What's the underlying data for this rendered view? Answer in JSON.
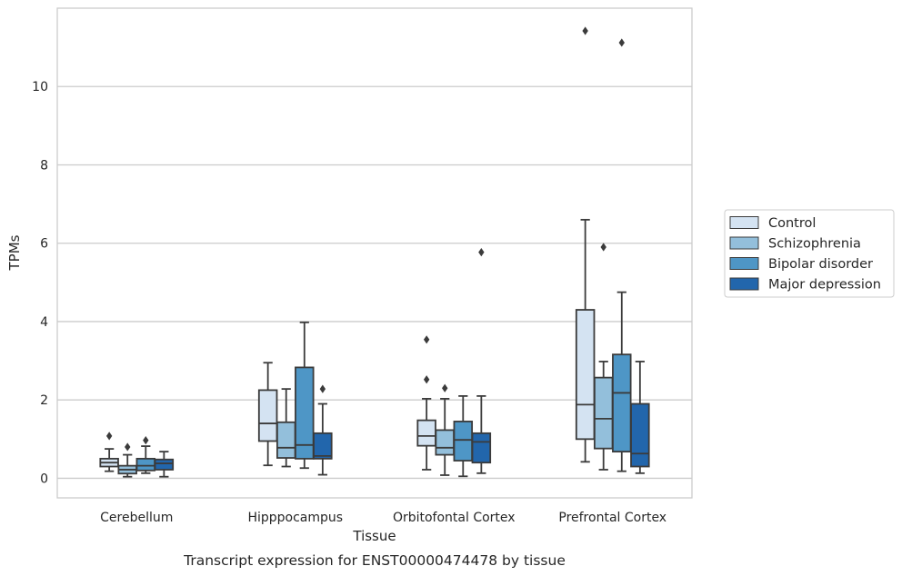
{
  "chart_data": {
    "type": "box",
    "caption": "Transcript expression for ENST00000474478 by tissue",
    "xlabel": "Tissue",
    "ylabel": "TPMs",
    "ylim": [
      -0.5,
      12.0
    ],
    "yticks": [
      0,
      2,
      4,
      6,
      8,
      10
    ],
    "grid": "horizontal",
    "legend_position": "right",
    "categories": [
      "Cerebellum",
      "Hipppocampus",
      "Orbitofontal Cortex",
      "Prefrontal Cortex"
    ],
    "series": [
      {
        "name": "Control",
        "color": "#d4e3f2",
        "boxes": [
          {
            "whislo": 0.18,
            "q1": 0.3,
            "med": 0.4,
            "q3": 0.5,
            "whishi": 0.75,
            "fliers": [
              1.08
            ]
          },
          {
            "whislo": 0.33,
            "q1": 0.95,
            "med": 1.4,
            "q3": 2.25,
            "whishi": 2.95,
            "fliers": []
          },
          {
            "whislo": 0.22,
            "q1": 0.83,
            "med": 1.08,
            "q3": 1.48,
            "whishi": 2.03,
            "fliers": [
              2.52,
              3.54
            ]
          },
          {
            "whislo": 0.42,
            "q1": 1.0,
            "med": 1.88,
            "q3": 4.3,
            "whishi": 6.6,
            "fliers": [
              11.42
            ]
          }
        ]
      },
      {
        "name": "Schizophrenia",
        "color": "#93bfdb",
        "boxes": [
          {
            "whislo": 0.04,
            "q1": 0.12,
            "med": 0.22,
            "q3": 0.32,
            "whishi": 0.6,
            "fliers": [
              0.8
            ]
          },
          {
            "whislo": 0.3,
            "q1": 0.52,
            "med": 0.78,
            "q3": 1.43,
            "whishi": 2.28,
            "fliers": []
          },
          {
            "whislo": 0.08,
            "q1": 0.6,
            "med": 0.78,
            "q3": 1.23,
            "whishi": 2.03,
            "fliers": [
              2.3
            ]
          },
          {
            "whislo": 0.22,
            "q1": 0.76,
            "med": 1.52,
            "q3": 2.57,
            "whishi": 2.98,
            "fliers": [
              5.9
            ]
          }
        ]
      },
      {
        "name": "Bipolar disorder",
        "color": "#4e96c6",
        "boxes": [
          {
            "whislo": 0.13,
            "q1": 0.2,
            "med": 0.32,
            "q3": 0.5,
            "whishi": 0.82,
            "fliers": [
              0.97
            ]
          },
          {
            "whislo": 0.26,
            "q1": 0.5,
            "med": 0.85,
            "q3": 2.83,
            "whishi": 3.98,
            "fliers": []
          },
          {
            "whislo": 0.05,
            "q1": 0.45,
            "med": 0.98,
            "q3": 1.45,
            "whishi": 2.1,
            "fliers": []
          },
          {
            "whislo": 0.18,
            "q1": 0.68,
            "med": 2.18,
            "q3": 3.16,
            "whishi": 4.75,
            "fliers": [
              11.12
            ]
          }
        ]
      },
      {
        "name": "Major depression",
        "color": "#2266ac",
        "boxes": [
          {
            "whislo": 0.04,
            "q1": 0.22,
            "med": 0.38,
            "q3": 0.48,
            "whishi": 0.68,
            "fliers": []
          },
          {
            "whislo": 0.09,
            "q1": 0.5,
            "med": 0.57,
            "q3": 1.15,
            "whishi": 1.9,
            "fliers": [
              2.28
            ]
          },
          {
            "whislo": 0.13,
            "q1": 0.4,
            "med": 0.93,
            "q3": 1.15,
            "whishi": 2.1,
            "fliers": [
              5.77
            ]
          },
          {
            "whislo": 0.13,
            "q1": 0.3,
            "med": 0.63,
            "q3": 1.9,
            "whishi": 2.98,
            "fliers": []
          }
        ]
      }
    ]
  }
}
